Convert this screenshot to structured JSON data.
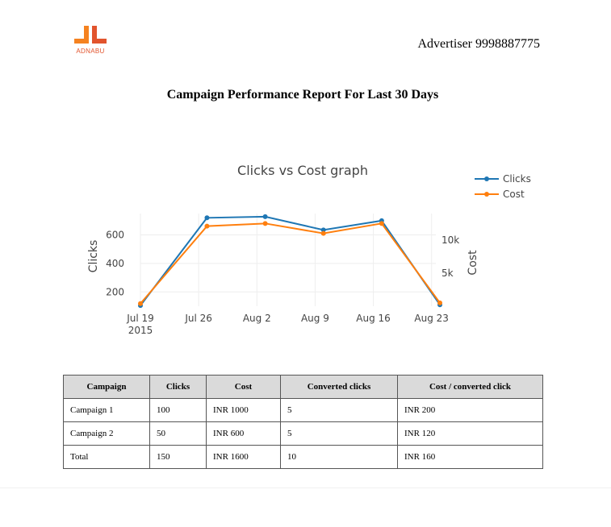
{
  "header": {
    "logo_text": "ADNABU",
    "advertiser": "Advertiser 9998887775"
  },
  "report_title": "Campaign Performance Report For Last 30 Days",
  "colors": {
    "clicks": "#1f77b4",
    "cost": "#ff7f0e",
    "logo": "#f58220"
  },
  "chart_data": {
    "type": "line",
    "title": "Clicks vs Cost graph",
    "x": [
      "2015-07-19",
      "2015-07-27",
      "2015-08-03",
      "2015-08-10",
      "2015-08-17",
      "2015-08-24"
    ],
    "x_ticks": [
      {
        "date": "2015-07-19",
        "label": "Jul 19",
        "sublabel": "2015"
      },
      {
        "date": "2015-07-26",
        "label": "Jul 26",
        "sublabel": ""
      },
      {
        "date": "2015-08-02",
        "label": "Aug 2",
        "sublabel": ""
      },
      {
        "date": "2015-08-09",
        "label": "Aug 9",
        "sublabel": ""
      },
      {
        "date": "2015-08-16",
        "label": "Aug 16",
        "sublabel": ""
      },
      {
        "date": "2015-08-23",
        "label": "Aug 23",
        "sublabel": ""
      }
    ],
    "y_left": {
      "label": "Clicks",
      "ticks": [
        "600",
        "400",
        "200"
      ],
      "range": [
        100,
        750
      ]
    },
    "y_right": {
      "label": "Cost",
      "ticks": [
        "10k",
        "5k"
      ],
      "range": [
        0,
        14000
      ]
    },
    "series": [
      {
        "name": "Clicks",
        "axis": "left",
        "color": "#1f77b4",
        "values": [
          105,
          720,
          728,
          635,
          700,
          110
        ]
      },
      {
        "name": "Cost",
        "axis": "right",
        "color": "#ff7f0e",
        "values": [
          400,
          12100,
          12500,
          11000,
          12500,
          500
        ]
      }
    ],
    "legend": "top-right",
    "grid": true
  },
  "table": {
    "headers": [
      "Campaign",
      "Clicks",
      "Cost",
      "Converted clicks",
      "Cost / converted click"
    ],
    "rows": [
      [
        "Campaign 1",
        "100",
        "INR 1000",
        "5",
        "INR 200"
      ],
      [
        "Campaign 2",
        "50",
        "INR 600",
        "5",
        "INR 120"
      ],
      [
        "Total",
        "150",
        "INR 1600",
        "10",
        "INR 160"
      ]
    ]
  }
}
